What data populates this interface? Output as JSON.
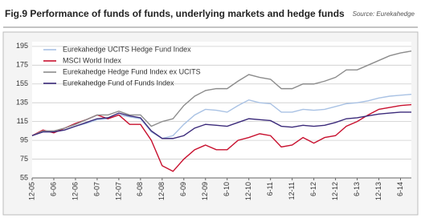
{
  "chart_data": {
    "type": "line",
    "title": "Fig.9  Performance of funds of funds, underlying markets and hedge funds",
    "source": "Source: Eurekahedge",
    "categories": [
      "12-05",
      null,
      "6-06",
      null,
      "12-06",
      null,
      "6-07",
      null,
      "12-07",
      null,
      "6-08",
      null,
      "12-08",
      null,
      "6-09",
      null,
      "12-09",
      null,
      "6-10",
      null,
      "12-10",
      null,
      "6-11",
      null,
      "12-11",
      null,
      "6-12",
      null,
      "12-12",
      null,
      "6-13",
      null,
      "12-13",
      null,
      "6-14",
      null
    ],
    "series": [
      {
        "name": "Eurekahedge UCITS Hedge Fund Index",
        "color": "#a9c2e4",
        "values": [
          100,
          104,
          104,
          106,
          110,
          113,
          117,
          118,
          122,
          120,
          118,
          104,
          97,
          100,
          112,
          122,
          128,
          127,
          125,
          132,
          138,
          135,
          134,
          125,
          125,
          128,
          127,
          128,
          131,
          134,
          135,
          137,
          140,
          142,
          143,
          144
        ]
      },
      {
        "name": "MSCI World Index",
        "color": "#c8102e",
        "values": [
          100,
          106,
          103,
          108,
          113,
          117,
          122,
          118,
          122,
          112,
          112,
          95,
          68,
          62,
          75,
          85,
          90,
          85,
          85,
          95,
          98,
          102,
          100,
          88,
          90,
          98,
          92,
          98,
          100,
          110,
          115,
          122,
          128,
          130,
          132,
          133
        ]
      },
      {
        "name": "Eurekahedge Hedge Fund Index ex UCITS",
        "color": "#8c8c8c",
        "values": [
          100,
          105,
          105,
          108,
          112,
          117,
          122,
          122,
          126,
          122,
          122,
          110,
          115,
          118,
          132,
          142,
          148,
          150,
          150,
          158,
          165,
          162,
          160,
          150,
          150,
          155,
          155,
          158,
          162,
          170,
          170,
          175,
          180,
          185,
          188,
          190
        ]
      },
      {
        "name": "Eurekahedge Fund of Funds Index",
        "color": "#3b2a7a",
        "values": [
          100,
          104,
          104,
          106,
          110,
          114,
          118,
          119,
          124,
          121,
          119,
          105,
          97,
          97,
          100,
          108,
          112,
          111,
          110,
          114,
          118,
          117,
          116,
          110,
          109,
          111,
          110,
          111,
          114,
          118,
          119,
          121,
          123,
          124,
          125,
          125
        ]
      }
    ],
    "ylim": [
      55,
      200
    ],
    "yticks": [
      55,
      75,
      95,
      115,
      135,
      155,
      175,
      195
    ],
    "grid": true,
    "legend": "upper-left"
  }
}
